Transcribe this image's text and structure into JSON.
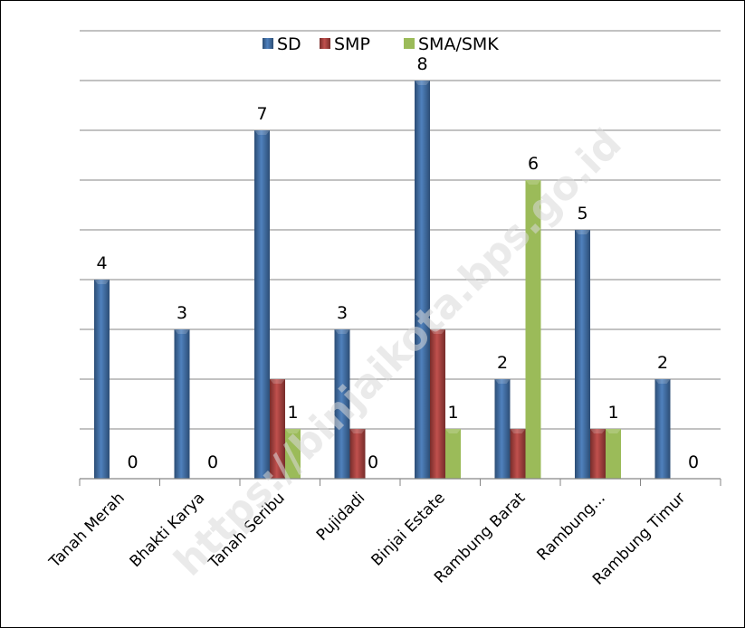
{
  "chart_data": {
    "type": "bar",
    "categories": [
      "Tanah Merah",
      "Bhakti Karya",
      "Tanah Seribu",
      "Pujidadi",
      "Binjai Estate",
      "Rambung Barat",
      "Rambung...",
      "Rambung Timur"
    ],
    "series": [
      {
        "name": "SD",
        "values": [
          4,
          3,
          7,
          3,
          8,
          2,
          5,
          2
        ],
        "color": "#4f81bd"
      },
      {
        "name": "SMP",
        "values": [
          0,
          0,
          2,
          1,
          3,
          1,
          1,
          0
        ],
        "color": "#c0504d"
      },
      {
        "name": "SMA/SMK",
        "values": [
          0,
          0,
          1,
          0,
          1,
          6,
          1,
          0
        ],
        "color": "#9bbb59"
      }
    ],
    "data_labels": [
      {
        "category": "Tanah Merah",
        "series": "SD",
        "text": "4"
      },
      {
        "category": "Tanah Merah",
        "series": "SMA/SMK",
        "text": "0"
      },
      {
        "category": "Bhakti Karya",
        "series": "SD",
        "text": "3"
      },
      {
        "category": "Bhakti Karya",
        "series": "SMA/SMK",
        "text": "0"
      },
      {
        "category": "Tanah Seribu",
        "series": "SD",
        "text": "7"
      },
      {
        "category": "Tanah Seribu",
        "series": "SMA/SMK",
        "text": "1"
      },
      {
        "category": "Pujidadi",
        "series": "SD",
        "text": "3"
      },
      {
        "category": "Pujidadi",
        "series": "SMA/SMK",
        "text": "0"
      },
      {
        "category": "Binjai Estate",
        "series": "SD",
        "text": "8"
      },
      {
        "category": "Binjai Estate",
        "series": "SMA/SMK",
        "text": "1"
      },
      {
        "category": "Rambung Barat",
        "series": "SD",
        "text": "2"
      },
      {
        "category": "Rambung Barat",
        "series": "SMA/SMK",
        "text": "6"
      },
      {
        "category": "Rambung...",
        "series": "SD",
        "text": "5"
      },
      {
        "category": "Rambung...",
        "series": "SMA/SMK",
        "text": "1"
      },
      {
        "category": "Rambung Timur",
        "series": "SD",
        "text": "2"
      },
      {
        "category": "Rambung Timur",
        "series": "SMA/SMK",
        "text": "0"
      }
    ],
    "ylim": [
      0,
      9
    ],
    "grid": true,
    "legend": "top-center",
    "watermark": "https://binjaikota.bps.go.id"
  }
}
